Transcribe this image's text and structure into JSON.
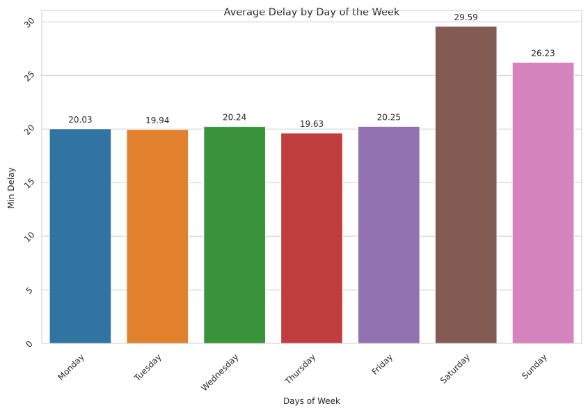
{
  "chart_data": {
    "type": "bar",
    "title": "Average Delay by Day of the Week",
    "xlabel": "Days of Week",
    "ylabel": "Min Delay",
    "categories": [
      "Monday",
      "Tuesday",
      "Wednesday",
      "Thursday",
      "Friday",
      "Saturday",
      "Sunday"
    ],
    "values": [
      20.03,
      19.94,
      20.24,
      19.63,
      20.25,
      29.59,
      26.23
    ],
    "data_labels": [
      "20.03",
      "19.94",
      "20.24",
      "19.63",
      "20.25",
      "29.59",
      "26.23"
    ],
    "colors": [
      "#3274a1",
      "#e1812c",
      "#3a923a",
      "#c03d3e",
      "#9372b2",
      "#845b53",
      "#d684bd"
    ],
    "yticks": [
      0,
      5,
      10,
      15,
      20,
      25,
      30
    ],
    "ytick_labels": [
      "0",
      "5",
      "10",
      "15",
      "20",
      "25",
      "30"
    ],
    "ylim": [
      0,
      31.07
    ],
    "grid": "horizontal",
    "legend": "none"
  }
}
